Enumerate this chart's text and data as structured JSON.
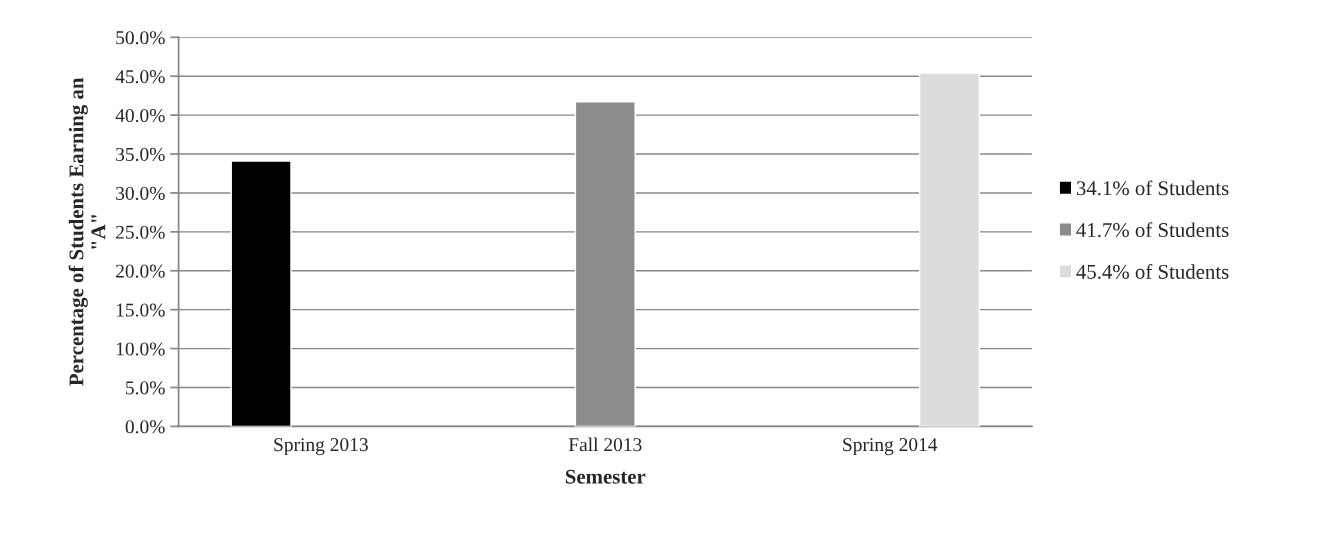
{
  "chart_data": {
    "type": "bar",
    "xlabel": "Semester",
    "ylabel": "Percentage of Students Earning an\n\"A\"",
    "categories": [
      "Spring 2013",
      "Fall 2013",
      "Spring 2014"
    ],
    "series": [
      {
        "name": "34.1% of Students",
        "color": "#000000",
        "values": [
          34.1,
          null,
          null
        ]
      },
      {
        "name": "41.7% of Students",
        "color": "#8c8c8c",
        "values": [
          null,
          41.7,
          null
        ]
      },
      {
        "name": "45.4% of Students",
        "color": "#dcdcdc",
        "values": [
          null,
          null,
          45.4
        ]
      }
    ],
    "ylim": [
      0,
      50
    ],
    "yticks": [
      {
        "value": 0,
        "label": "0.0%"
      },
      {
        "value": 5,
        "label": "5.0%"
      },
      {
        "value": 10,
        "label": "10.0%"
      },
      {
        "value": 15,
        "label": "15.0%"
      },
      {
        "value": 20,
        "label": "20.0%"
      },
      {
        "value": 25,
        "label": "25.0%"
      },
      {
        "value": 30,
        "label": "30.0%"
      },
      {
        "value": 35,
        "label": "35.0%"
      },
      {
        "value": 40,
        "label": "40.0%"
      },
      {
        "value": 45,
        "label": "45.0%"
      },
      {
        "value": 50,
        "label": "50.0%"
      }
    ],
    "grid": "y",
    "legend": "right"
  }
}
